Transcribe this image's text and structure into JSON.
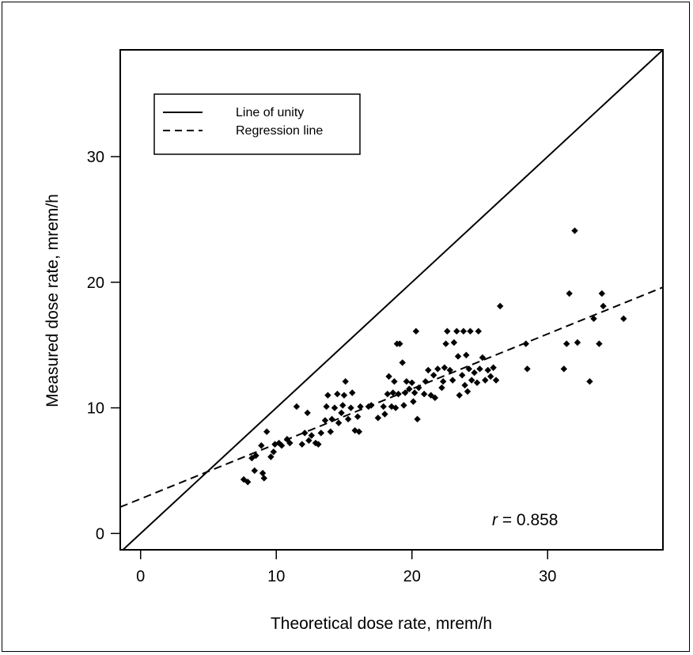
{
  "chart_data": {
    "type": "scatter",
    "title": "",
    "xlabel": "Theoretical dose rate, mrem/h",
    "ylabel": "Measured dose rate, mrem/h",
    "xlim": [
      -1.5,
      38.5
    ],
    "ylim": [
      -1.3,
      38.5
    ],
    "xticks": [
      0,
      10,
      20,
      30
    ],
    "yticks": [
      0,
      10,
      20,
      30
    ],
    "grid": false,
    "legend_position": "top-left",
    "legend": [
      {
        "label": "Line of unity",
        "style": "solid"
      },
      {
        "label": "Regression line",
        "style": "dashed"
      }
    ],
    "lines": [
      {
        "name": "Line of unity",
        "style": "solid",
        "x": [
          -1.5,
          38.5
        ],
        "y": [
          -1.5,
          38.5
        ]
      },
      {
        "name": "Regression line",
        "style": "dashed",
        "x": [
          -1.5,
          38.5
        ],
        "y": [
          2.1,
          19.6
        ]
      }
    ],
    "annotation": {
      "italic": "r",
      "text": " = 0.858"
    },
    "points": [
      [
        7.6,
        4.3
      ],
      [
        7.9,
        4.1
      ],
      [
        8.2,
        6.0
      ],
      [
        8.4,
        5.0
      ],
      [
        8.5,
        6.2
      ],
      [
        8.9,
        7.0
      ],
      [
        9.0,
        4.8
      ],
      [
        9.1,
        4.4
      ],
      [
        9.3,
        8.1
      ],
      [
        9.6,
        6.1
      ],
      [
        9.8,
        6.5
      ],
      [
        9.9,
        7.1
      ],
      [
        10.2,
        7.2
      ],
      [
        10.4,
        7.0
      ],
      [
        10.8,
        7.5
      ],
      [
        11.0,
        7.2
      ],
      [
        11.5,
        10.1
      ],
      [
        11.9,
        7.1
      ],
      [
        12.1,
        8.0
      ],
      [
        12.3,
        9.6
      ],
      [
        12.4,
        7.4
      ],
      [
        12.6,
        7.8
      ],
      [
        12.9,
        7.2
      ],
      [
        13.1,
        7.1
      ],
      [
        13.3,
        8.0
      ],
      [
        13.6,
        9.0
      ],
      [
        13.7,
        10.1
      ],
      [
        13.8,
        11.0
      ],
      [
        14.0,
        8.1
      ],
      [
        14.1,
        9.1
      ],
      [
        14.3,
        10.0
      ],
      [
        14.5,
        11.1
      ],
      [
        14.6,
        8.8
      ],
      [
        14.8,
        9.6
      ],
      [
        14.9,
        10.2
      ],
      [
        15.0,
        11.0
      ],
      [
        15.1,
        12.1
      ],
      [
        15.3,
        9.1
      ],
      [
        15.5,
        10.0
      ],
      [
        15.6,
        11.2
      ],
      [
        15.8,
        8.2
      ],
      [
        16.0,
        9.3
      ],
      [
        16.1,
        8.1
      ],
      [
        16.2,
        10.1
      ],
      [
        16.8,
        10.1
      ],
      [
        17.0,
        10.2
      ],
      [
        17.5,
        9.2
      ],
      [
        17.9,
        10.1
      ],
      [
        18.0,
        9.5
      ],
      [
        18.2,
        11.1
      ],
      [
        18.3,
        12.5
      ],
      [
        18.5,
        10.1
      ],
      [
        18.6,
        11.2
      ],
      [
        18.7,
        12.1
      ],
      [
        18.8,
        10.0
      ],
      [
        18.9,
        15.1
      ],
      [
        19.0,
        11.1
      ],
      [
        19.1,
        15.1
      ],
      [
        19.3,
        13.6
      ],
      [
        19.4,
        10.2
      ],
      [
        19.5,
        11.2
      ],
      [
        19.6,
        12.1
      ],
      [
        19.8,
        11.5
      ],
      [
        20.0,
        12.0
      ],
      [
        20.1,
        10.5
      ],
      [
        20.2,
        11.2
      ],
      [
        20.3,
        16.1
      ],
      [
        20.4,
        9.1
      ],
      [
        20.5,
        11.6
      ],
      [
        20.9,
        11.1
      ],
      [
        21.0,
        12.1
      ],
      [
        21.2,
        13.0
      ],
      [
        21.4,
        11.0
      ],
      [
        21.6,
        12.6
      ],
      [
        21.7,
        10.8
      ],
      [
        21.9,
        13.1
      ],
      [
        22.2,
        11.6
      ],
      [
        22.3,
        12.1
      ],
      [
        22.4,
        13.2
      ],
      [
        22.5,
        15.1
      ],
      [
        22.6,
        16.1
      ],
      [
        22.8,
        13.0
      ],
      [
        23.0,
        12.2
      ],
      [
        23.1,
        15.2
      ],
      [
        23.3,
        16.1
      ],
      [
        23.4,
        14.1
      ],
      [
        23.5,
        11.0
      ],
      [
        23.7,
        12.6
      ],
      [
        23.8,
        16.1
      ],
      [
        23.9,
        11.8
      ],
      [
        24.0,
        14.2
      ],
      [
        24.1,
        11.3
      ],
      [
        24.2,
        13.1
      ],
      [
        24.3,
        16.1
      ],
      [
        24.4,
        12.2
      ],
      [
        24.6,
        12.8
      ],
      [
        24.8,
        12.0
      ],
      [
        24.9,
        16.1
      ],
      [
        25.0,
        13.1
      ],
      [
        25.2,
        14.0
      ],
      [
        25.4,
        12.2
      ],
      [
        25.6,
        13.0
      ],
      [
        25.8,
        12.5
      ],
      [
        26.0,
        13.2
      ],
      [
        26.2,
        12.2
      ],
      [
        26.5,
        18.1
      ],
      [
        28.4,
        15.1
      ],
      [
        28.5,
        13.1
      ],
      [
        31.2,
        13.1
      ],
      [
        31.4,
        15.1
      ],
      [
        31.6,
        19.1
      ],
      [
        32.0,
        24.1
      ],
      [
        32.2,
        15.2
      ],
      [
        33.1,
        12.1
      ],
      [
        33.4,
        17.1
      ],
      [
        33.8,
        15.1
      ],
      [
        34.0,
        19.1
      ],
      [
        34.1,
        18.1
      ],
      [
        35.6,
        17.1
      ]
    ]
  }
}
